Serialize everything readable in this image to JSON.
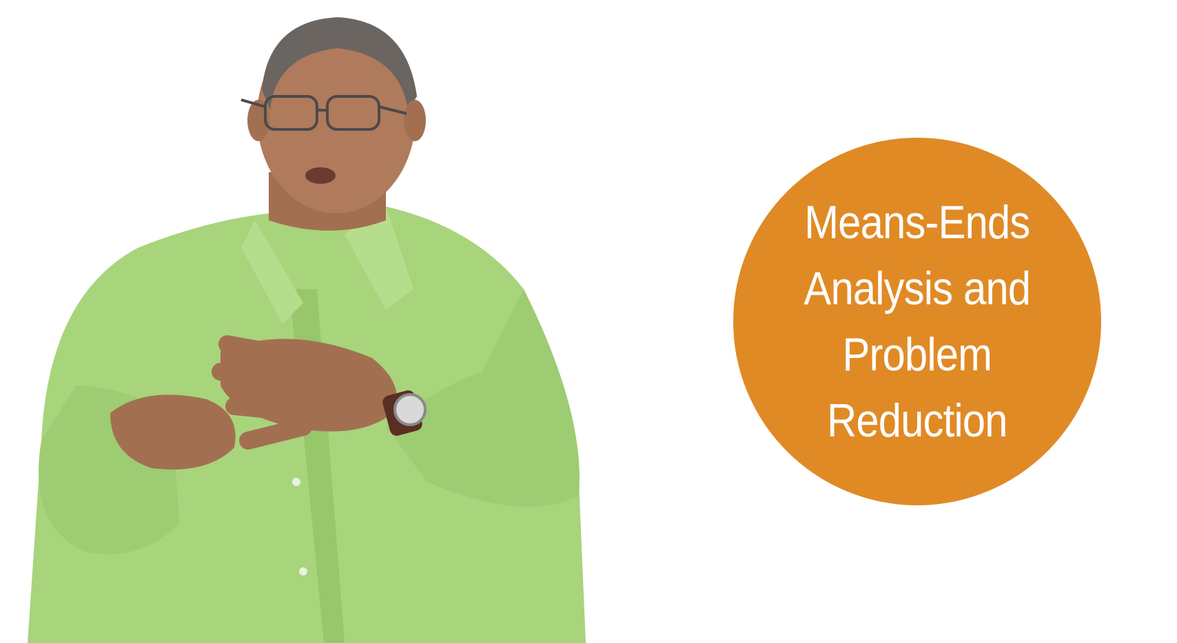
{
  "video_frame": {
    "topic": {
      "lines": [
        "Means-Ends",
        "Analysis and",
        "Problem",
        "Reduction"
      ],
      "badge_color": "#e08a25",
      "text_color": "#ffffff"
    },
    "presenter": {
      "shirt_color": "#a8d47c",
      "skin_color": "#b07a5c",
      "hair_color": "#6b6561"
    }
  }
}
